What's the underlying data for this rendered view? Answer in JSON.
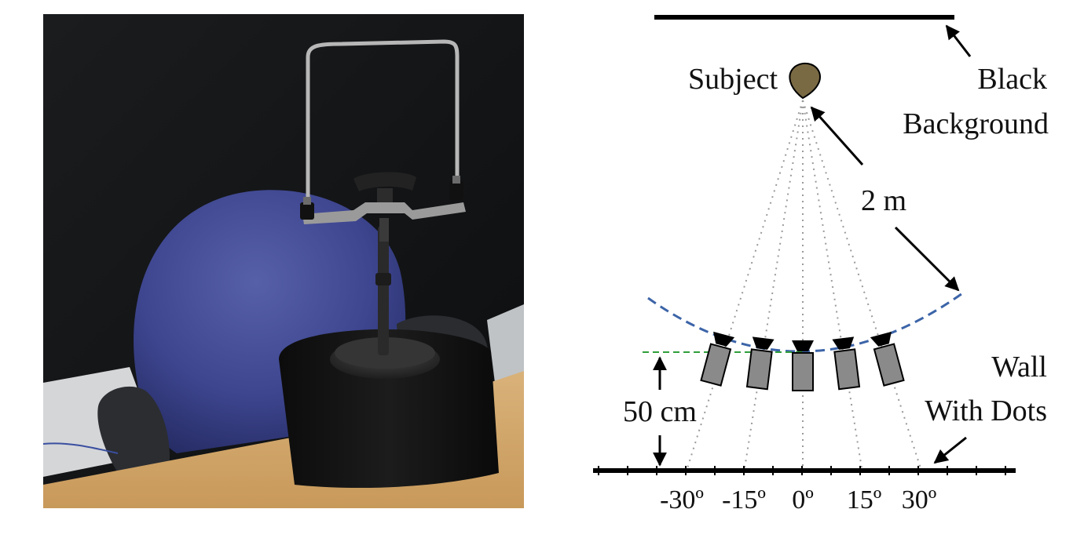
{
  "photo": {
    "description_icon": "chin-rest-photo"
  },
  "diagram": {
    "subject_label": "Subject",
    "background_label_line1": "Black",
    "background_label_line2": "Background",
    "distance_label": "2 m",
    "offset_label": "50 cm",
    "wall_label_line1": "Wall",
    "wall_label_line2": "With Dots",
    "angle_labels": [
      "-30º",
      "-15º",
      "0º",
      "15º",
      "30º"
    ],
    "colors": {
      "arc": "#3c64a8",
      "baseline": "#2f9e3a",
      "camera_body": "#8a8a8a",
      "subject_head": "#7a6a44",
      "ink": "#000000"
    }
  }
}
